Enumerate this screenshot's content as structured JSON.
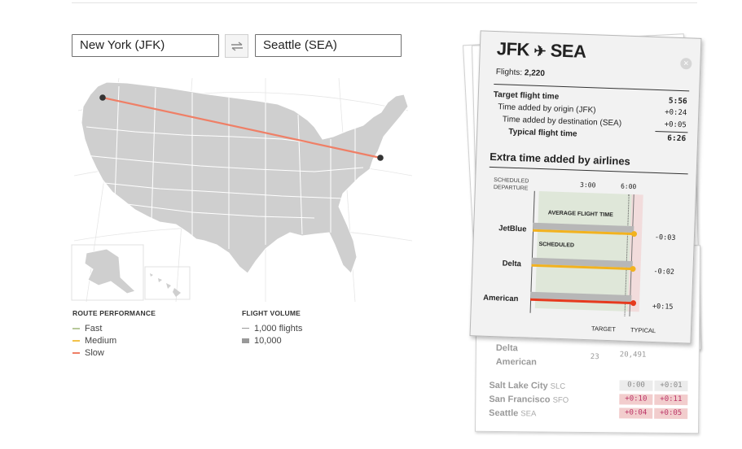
{
  "search": {
    "origin_value": "New York (JFK)",
    "destination_value": "Seattle (SEA)"
  },
  "legend": {
    "performance_title": "ROUTE PERFORMANCE",
    "performance_items": [
      {
        "label": "Fast",
        "color": "#b7c89a"
      },
      {
        "label": "Medium",
        "color": "#f3c24a"
      },
      {
        "label": "Slow",
        "color": "#ef7f66"
      }
    ],
    "volume_title": "FLIGHT VOLUME",
    "volume_items": [
      {
        "label": "1,000 flights"
      },
      {
        "label": "10,000"
      }
    ]
  },
  "card": {
    "origin_code": "JFK",
    "destination_code": "SEA",
    "flights_label": "Flights:",
    "flights_value": "2,220",
    "target_title": "Target flight time",
    "rows": [
      {
        "label": "Time added by origin (JFK)",
        "value": "+0:24"
      },
      {
        "label": "Time added by destination (SEA)",
        "value": "+0:05"
      }
    ],
    "target_value": "5:56",
    "typical_label": "Typical flight time",
    "typical_value": "6:26",
    "extra_title": "Extra time added by airlines",
    "sched_label_1": "SCHEDULED",
    "sched_label_2": "DEPARTURE",
    "tick_3": "3:00",
    "tick_6": "6:00",
    "avg_label": "AVERAGE FLIGHT TIME",
    "scheduled_label": "SCHEDULED",
    "target_axis": "TARGET",
    "typical_axis": "TYPICAL",
    "airlines": [
      {
        "name": "JetBlue",
        "delta": "-0:03",
        "color": "#f2b21f"
      },
      {
        "name": "Delta",
        "delta": "-0:02",
        "color": "#f2b21f"
      },
      {
        "name": "American",
        "delta": "+0:15",
        "color": "#e63a1e"
      }
    ]
  },
  "background_card": {
    "rows": [
      {
        "name": "Delta",
        "num": ""
      },
      {
        "name": "American",
        "num": "23",
        "num2": "20,491"
      }
    ],
    "cities": [
      {
        "name": "Salt Lake City",
        "code": "SLC",
        "a": "0:00",
        "b": "+0:01"
      },
      {
        "name": "San Francisco",
        "code": "SFO",
        "a": "+0:10",
        "b": "+0:11"
      },
      {
        "name": "Seattle",
        "code": "SEA",
        "a": "+0:04",
        "b": "+0:05"
      }
    ]
  }
}
